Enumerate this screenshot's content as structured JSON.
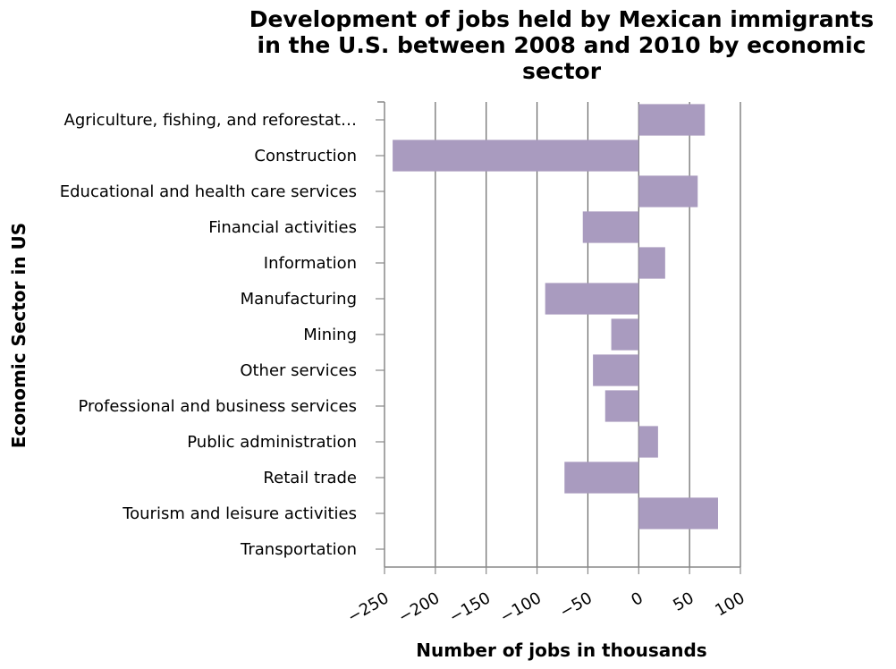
{
  "chart_data": {
    "type": "bar",
    "orientation": "horizontal",
    "title_lines": [
      "Development of jobs held by Mexican immigrants",
      "in the U.S. between 2008 and 2010 by economic",
      "sector"
    ],
    "xlabel": "Number of jobs in thousands",
    "ylabel": "Economic Sector in US",
    "xlim": [
      -250,
      100
    ],
    "xticks": [
      -250,
      -200,
      -150,
      -100,
      -50,
      0,
      50,
      100
    ],
    "xtick_labels": [
      "−250",
      "−200",
      "−150",
      "−100",
      "−50",
      "0",
      "50",
      "100"
    ],
    "grid": "vertical",
    "bar_color": "#a99bbf",
    "categories": [
      "Agriculture, fishing, and reforestat…",
      "Construction",
      "Educational and health care services",
      "Financial activities",
      "Information",
      "Manufacturing",
      "Mining",
      "Other services",
      "Professional and business services",
      "Public administration",
      "Retail trade",
      "Tourism and leisure activities",
      "Transportation"
    ],
    "values": [
      65,
      -242,
      58,
      -55,
      26,
      -92,
      -27,
      -45,
      -33,
      19,
      -73,
      78,
      0
    ]
  }
}
